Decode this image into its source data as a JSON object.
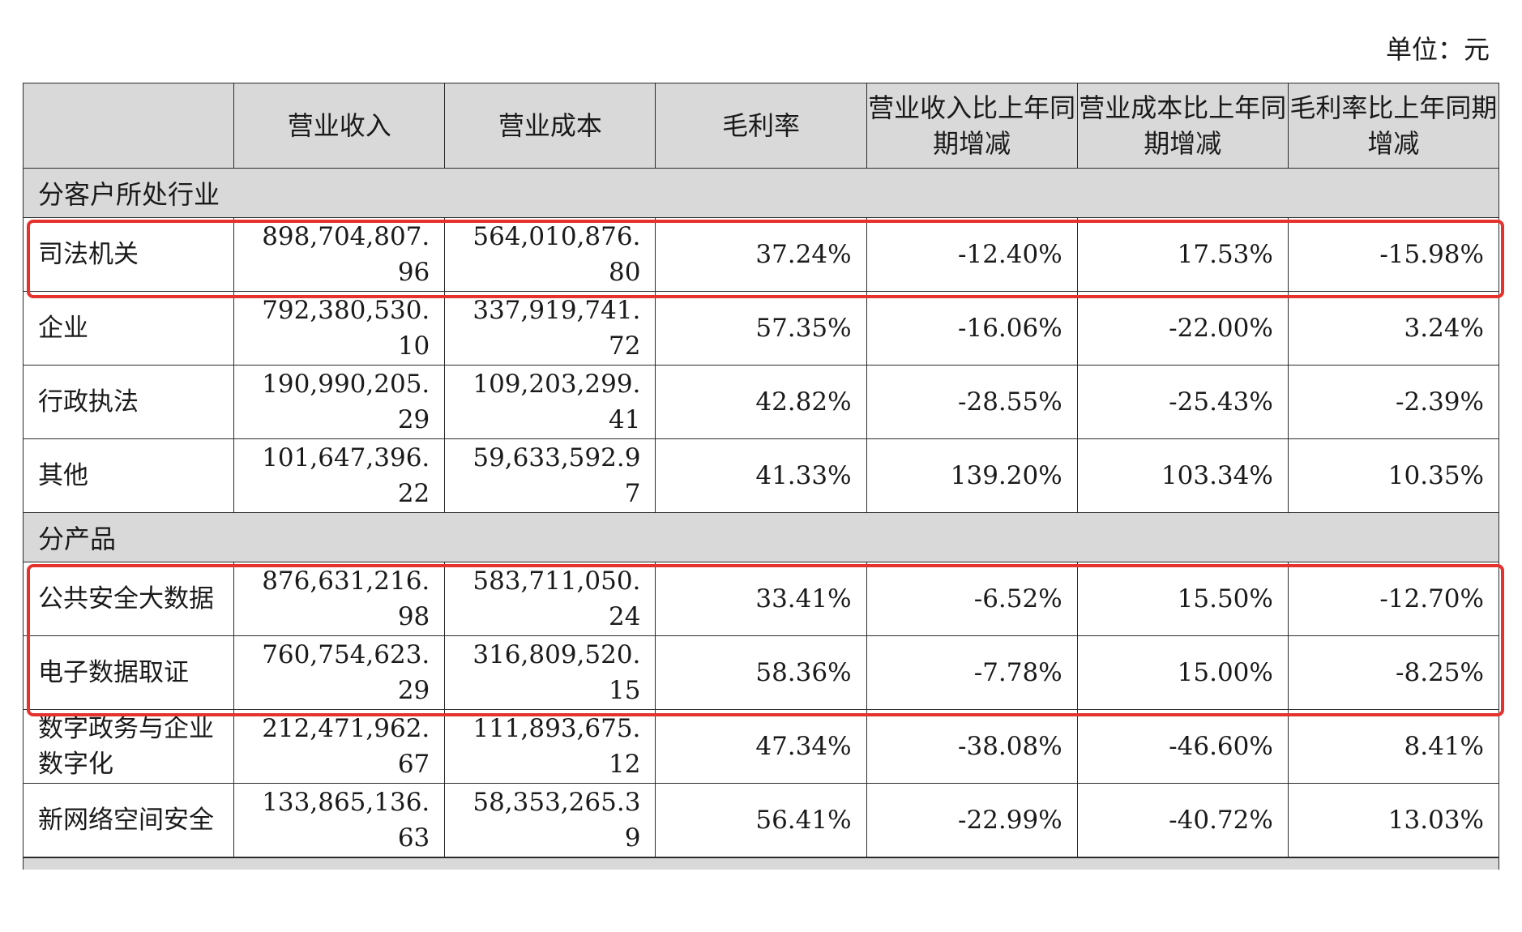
{
  "unit_label": "单位：元",
  "header": {
    "c0": "",
    "c1": "营业收入",
    "c2": "营业成本",
    "c3": "毛利率",
    "c4": "营业收入比上年同期增减",
    "c5": "营业成本比上年同期增减",
    "c6": "毛利率比上年同期增减"
  },
  "sections": [
    {
      "title": "分客户所处行业",
      "rows": [
        {
          "name": "司法机关",
          "revenue": "898,704,807.96",
          "cost": "564,010,876.80",
          "margin": "37.24%",
          "rev_yoy": "-12.40%",
          "cost_yoy": "17.53%",
          "margin_yoy": "-15.98%"
        },
        {
          "name": "企业",
          "revenue": "792,380,530.10",
          "cost": "337,919,741.72",
          "margin": "57.35%",
          "rev_yoy": "-16.06%",
          "cost_yoy": "-22.00%",
          "margin_yoy": "3.24%"
        },
        {
          "name": "行政执法",
          "revenue": "190,990,205.29",
          "cost": "109,203,299.41",
          "margin": "42.82%",
          "rev_yoy": "-28.55%",
          "cost_yoy": "-25.43%",
          "margin_yoy": "-2.39%"
        },
        {
          "name": "其他",
          "revenue": "101,647,396.22",
          "cost": "59,633,592.97",
          "margin": "41.33%",
          "rev_yoy": "139.20%",
          "cost_yoy": "103.34%",
          "margin_yoy": "10.35%"
        }
      ]
    },
    {
      "title": "分产品",
      "rows": [
        {
          "name": "公共安全大数据",
          "revenue": "876,631,216.98",
          "cost": "583,711,050.24",
          "margin": "33.41%",
          "rev_yoy": "-6.52%",
          "cost_yoy": "15.50%",
          "margin_yoy": "-12.70%"
        },
        {
          "name": "电子数据取证",
          "revenue": "760,754,623.29",
          "cost": "316,809,520.15",
          "margin": "58.36%",
          "rev_yoy": "-7.78%",
          "cost_yoy": "15.00%",
          "margin_yoy": "-8.25%"
        },
        {
          "name": "数字政务与企业数字化",
          "revenue": "212,471,962.67",
          "cost": "111,893,675.12",
          "margin": "47.34%",
          "rev_yoy": "-38.08%",
          "cost_yoy": "-46.60%",
          "margin_yoy": "8.41%"
        },
        {
          "name": "新网络空间安全",
          "revenue": "133,865,136.63",
          "cost": "58,353,265.39",
          "margin": "56.41%",
          "rev_yoy": "-22.99%",
          "cost_yoy": "-40.72%",
          "margin_yoy": "13.03%"
        }
      ]
    }
  ],
  "highlight_color": "#e5322d"
}
